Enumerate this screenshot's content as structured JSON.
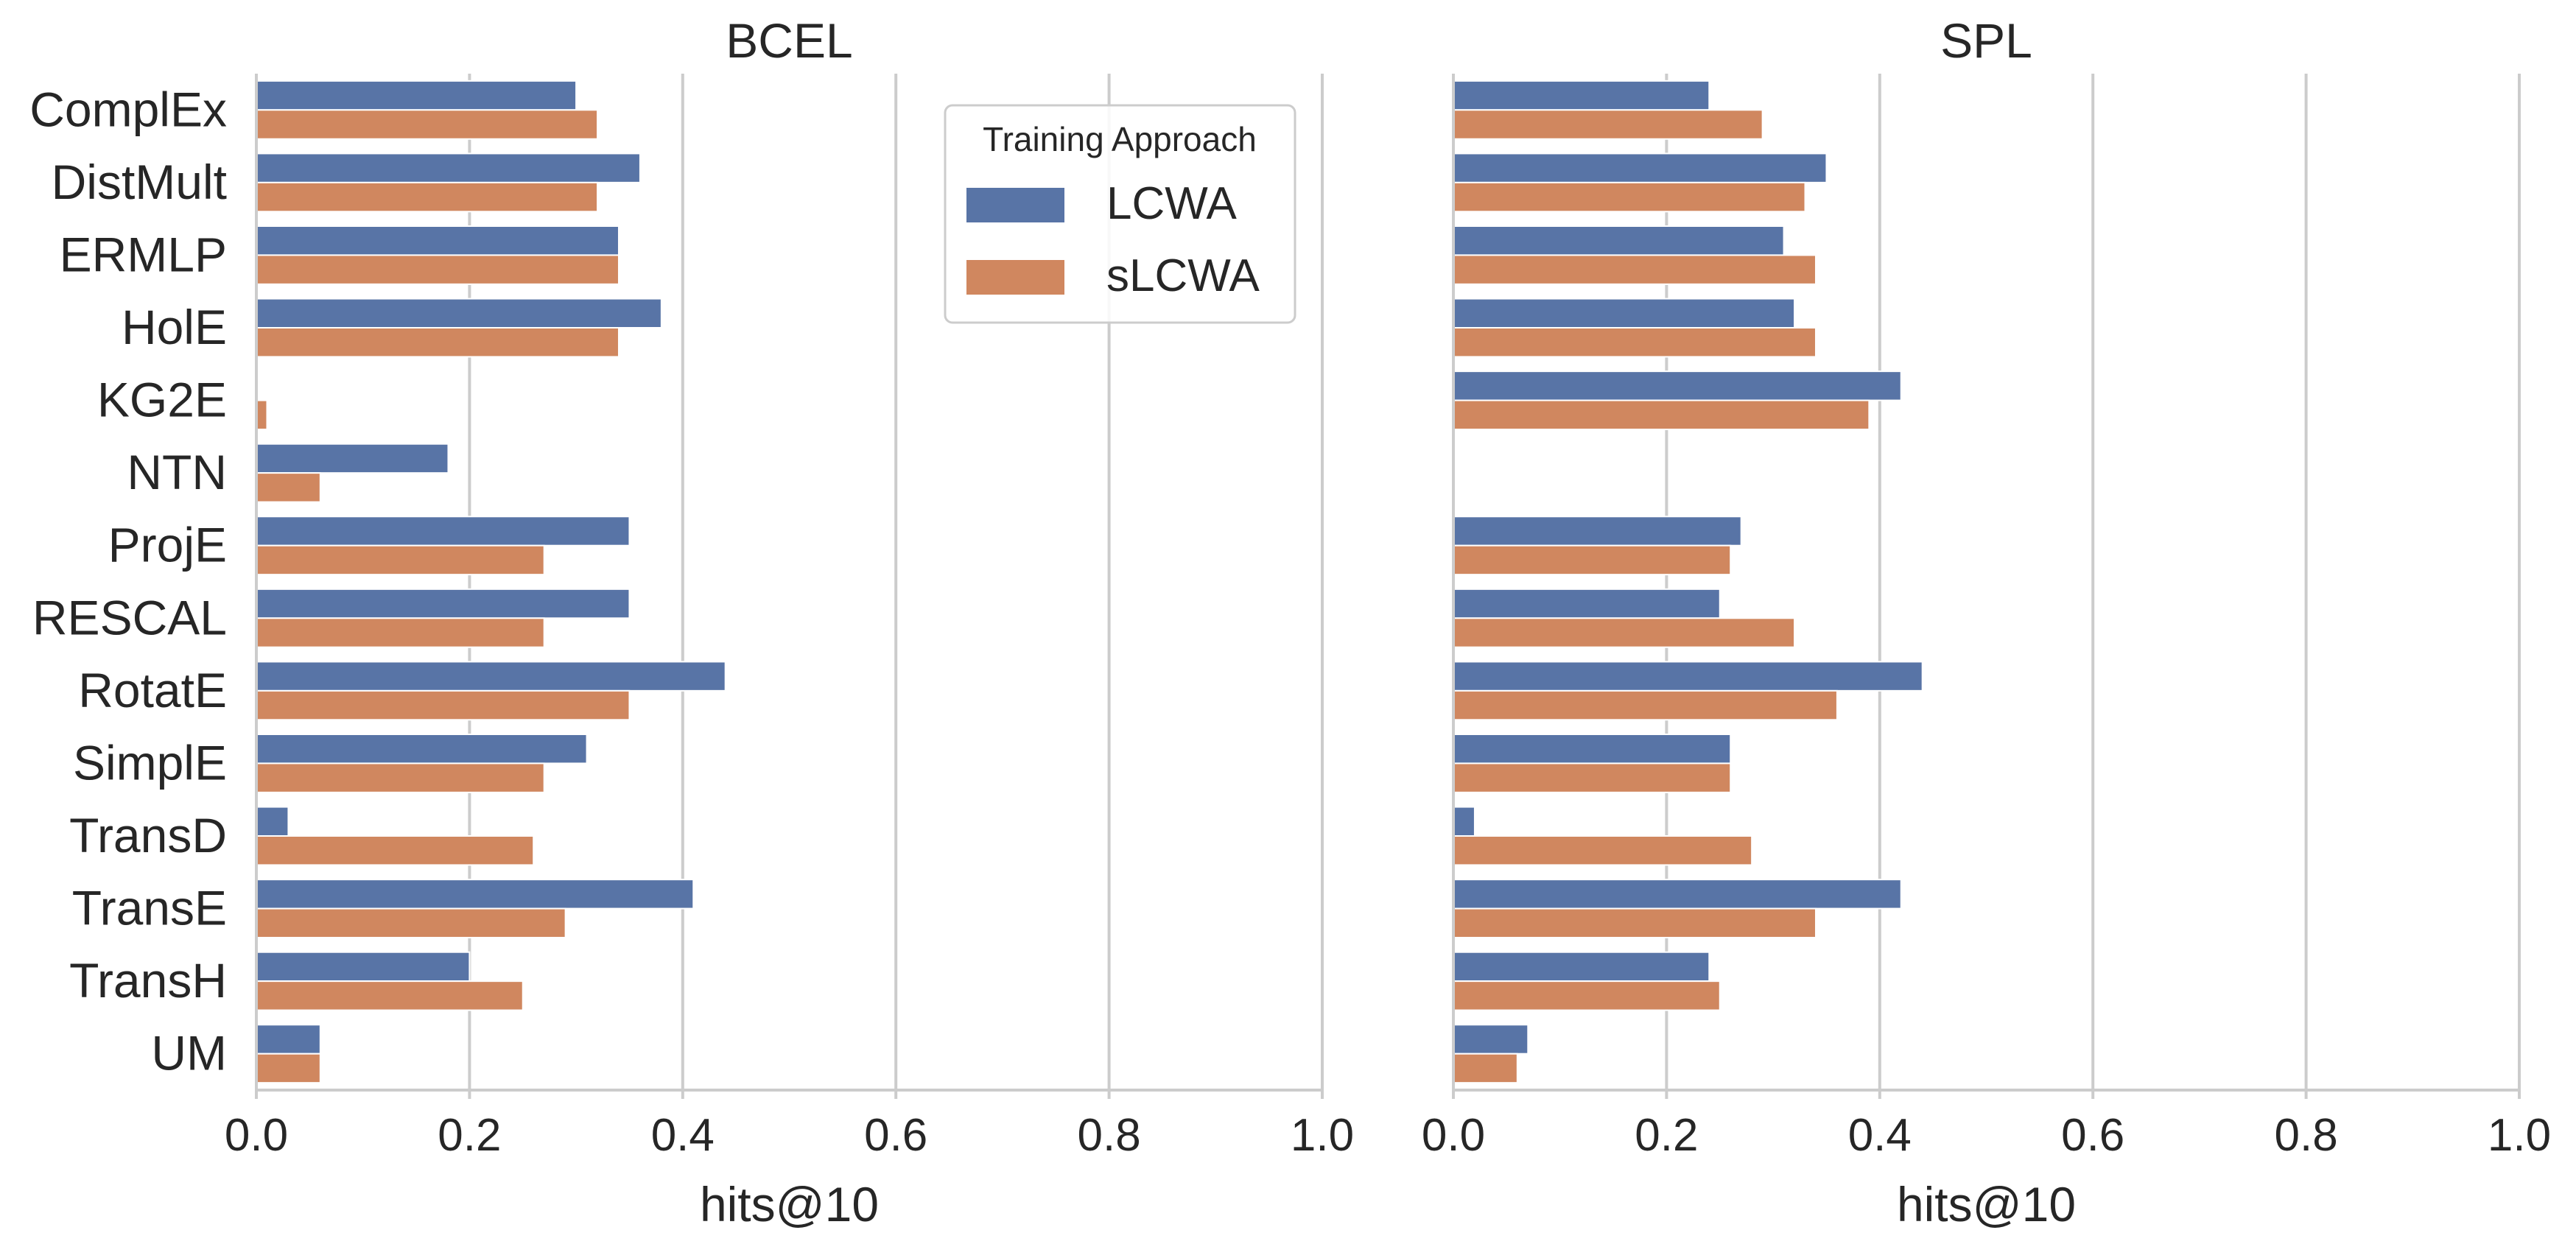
{
  "chart_data": [
    {
      "type": "bar",
      "orientation": "horizontal",
      "title": "BCEL",
      "xlabel": "hits@10",
      "ylabel": "",
      "xlim": [
        0,
        1.0
      ],
      "xticks": [
        "0.0",
        "0.2",
        "0.4",
        "0.6",
        "0.8",
        "1.0"
      ],
      "grid": "vertical",
      "categories": [
        "ComplEx",
        "DistMult",
        "ERMLP",
        "HolE",
        "KG2E",
        "NTN",
        "ProjE",
        "RESCAL",
        "RotatE",
        "SimplE",
        "TransD",
        "TransE",
        "TransH",
        "UM"
      ],
      "series": [
        {
          "name": "LCWA",
          "color": "#5874a6",
          "values": [
            0.3,
            0.36,
            0.34,
            0.38,
            null,
            0.18,
            0.35,
            0.35,
            0.44,
            0.31,
            0.03,
            0.41,
            0.2,
            0.06
          ]
        },
        {
          "name": "sLCWA",
          "color": "#d0875f",
          "values": [
            0.32,
            0.32,
            0.34,
            0.34,
            0.01,
            0.06,
            0.27,
            0.27,
            0.35,
            0.27,
            0.26,
            0.29,
            0.25,
            0.06
          ]
        }
      ]
    },
    {
      "type": "bar",
      "orientation": "horizontal",
      "title": "SPL",
      "xlabel": "hits@10",
      "ylabel": "",
      "xlim": [
        0,
        1.0
      ],
      "xticks": [
        "0.0",
        "0.2",
        "0.4",
        "0.6",
        "0.8",
        "1.0"
      ],
      "grid": "vertical",
      "categories": [
        "ComplEx",
        "DistMult",
        "ERMLP",
        "HolE",
        "KG2E",
        "NTN",
        "ProjE",
        "RESCAL",
        "RotatE",
        "SimplE",
        "TransD",
        "TransE",
        "TransH",
        "UM"
      ],
      "series": [
        {
          "name": "LCWA",
          "color": "#5874a6",
          "values": [
            0.24,
            0.35,
            0.31,
            0.32,
            0.42,
            null,
            0.27,
            0.25,
            0.44,
            0.26,
            0.02,
            0.42,
            0.24,
            0.07
          ]
        },
        {
          "name": "sLCWA",
          "color": "#d0875f",
          "values": [
            0.29,
            0.33,
            0.34,
            0.34,
            0.39,
            null,
            0.26,
            0.32,
            0.36,
            0.26,
            0.28,
            0.34,
            0.25,
            0.06
          ]
        }
      ]
    }
  ],
  "legend": {
    "title": "Training Approach",
    "placement": "upper-right of left panel",
    "items": [
      {
        "label": "LCWA",
        "color": "#5874a6"
      },
      {
        "label": "sLCWA",
        "color": "#d0875f"
      }
    ]
  }
}
